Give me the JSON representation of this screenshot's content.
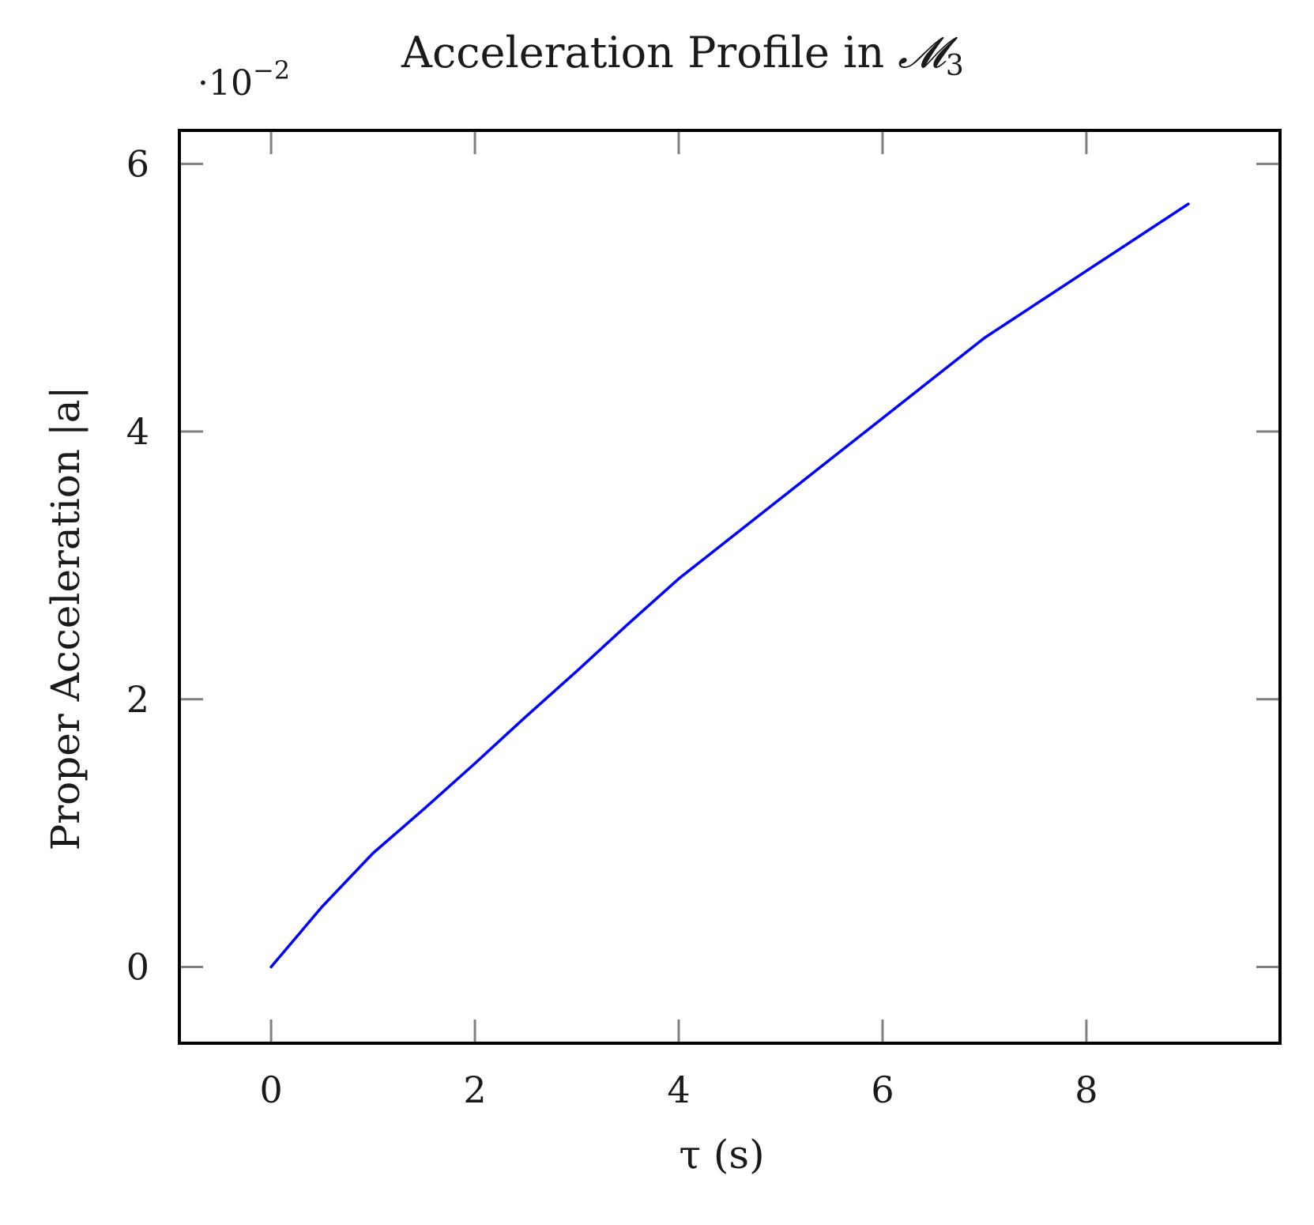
{
  "chart_data": {
    "type": "line",
    "title": "Acceleration Profile in 𝓜₃",
    "title_main": "Acceleration Profile in ",
    "title_math": "𝓜",
    "title_sub": "3",
    "xlabel": "τ (s)",
    "ylabel": "Proper Acceleration |a|",
    "y_multiplier": "·10",
    "y_multiplier_exp": "−2",
    "xlim": [
      -0.9,
      9.9
    ],
    "ylim": [
      -0.57,
      6.25
    ],
    "x_ticks": [
      0,
      2,
      4,
      6,
      8
    ],
    "y_ticks": [
      0,
      2,
      4,
      6
    ],
    "grid": false,
    "legend": null,
    "series": [
      {
        "name": "|a|",
        "color": "#0000ff",
        "x": [
          0,
          0.5,
          1,
          1.5,
          2,
          2.5,
          3,
          3.5,
          4,
          4.5,
          5,
          5.5,
          6,
          6.5,
          7,
          7.5,
          8,
          8.5,
          9
        ],
        "y": [
          0,
          0.45,
          0.85,
          1.18,
          1.52,
          1.87,
          2.21,
          2.56,
          2.9,
          3.2,
          3.5,
          3.8,
          4.1,
          4.4,
          4.7,
          4.95,
          5.2,
          5.45,
          5.7
        ]
      }
    ]
  },
  "colors": {
    "line": "#0000ff",
    "frame": "#000000",
    "tick": "#808080",
    "text": "#1a1a1a"
  }
}
